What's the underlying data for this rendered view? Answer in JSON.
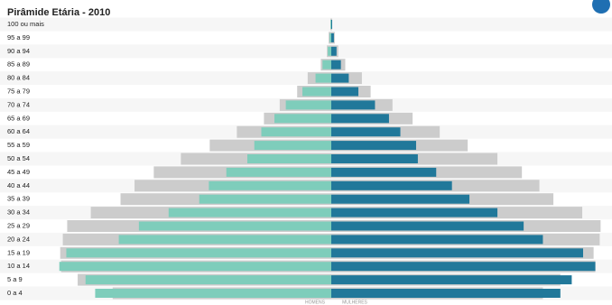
{
  "chart_data": {
    "type": "pyramid",
    "title": "Pirâmide Etária - 2010",
    "categories": [
      "100 ou mais",
      "95 a 99",
      "90 a 94",
      "85 a 89",
      "80 a 84",
      "75 a 79",
      "70 a 74",
      "65 a 69",
      "60 a 64",
      "55 a 59",
      "50 a 54",
      "45 a 49",
      "40 a 44",
      "35 a 39",
      "30 a 34",
      "25 a 29",
      "20 a 24",
      "15 a 19",
      "10 a 14",
      "5 a 9",
      "0 a 4"
    ],
    "xlim": [
      0,
      320
    ],
    "series": [
      {
        "color": "#cccccc",
        "side": "left",
        "values": [
          1,
          3,
          5,
          12,
          27,
          39,
          59,
          77,
          108,
          139,
          172,
          203,
          225,
          241,
          275,
          302,
          307,
          310,
          309,
          290,
          250
        ]
      },
      {
        "color": "#cccccc",
        "side": "right",
        "values": [
          1,
          4,
          8,
          16,
          35,
          45,
          70,
          93,
          124,
          156,
          190,
          218,
          238,
          254,
          287,
          308,
          307,
          300,
          302,
          262,
          242
        ]
      },
      {
        "name": "HOMENS",
        "color": "#7ecdbb",
        "side": "left",
        "values": [
          1,
          2,
          4,
          10,
          18,
          33,
          52,
          65,
          80,
          88,
          96,
          120,
          140,
          151,
          186,
          220,
          243,
          303,
          311,
          281,
          270
        ]
      },
      {
        "name": "MULHERES",
        "color": "#21789a",
        "side": "right",
        "values": [
          1,
          3,
          6,
          11,
          20,
          31,
          50,
          66,
          79,
          97,
          99,
          120,
          138,
          158,
          190,
          220,
          242,
          288,
          302,
          275,
          262
        ]
      }
    ]
  }
}
